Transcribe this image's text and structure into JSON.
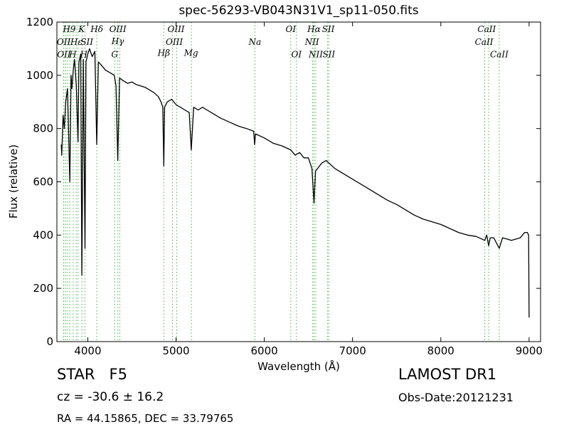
{
  "header": {
    "title": "spec-56293-VB043N31V1_sp11-050.fits"
  },
  "footer": {
    "object_class": "STAR   F5",
    "survey": "LAMOST DR1",
    "redshift": "cz = -30.6 ± 16.2",
    "obs_date": "Obs-Date:20121231",
    "coords": "RA = 44.15865, DEC = 33.79765"
  },
  "chart_data": {
    "type": "line",
    "title": "spec-56293-VB043N31V1_sp11-050.fits",
    "xlabel": "Wavelength (Å)",
    "ylabel": "Flux (relative)",
    "xlim": [
      3650,
      9130
    ],
    "ylim": [
      0,
      1200
    ],
    "xticks": [
      4000,
      5000,
      6000,
      7000,
      8000,
      9000
    ],
    "yticks": [
      0,
      200,
      400,
      600,
      800,
      1000,
      1200
    ],
    "grid": false,
    "series": [
      {
        "color": "#000000",
        "x": [
          3700,
          3705,
          3720,
          3735,
          3750,
          3770,
          3780,
          3797,
          3810,
          3820,
          3835,
          3850,
          3870,
          3889,
          3900,
          3920,
          3933,
          3950,
          3968,
          3980,
          4000,
          4020,
          4050,
          4080,
          4101,
          4120,
          4150,
          4200,
          4250,
          4300,
          4320,
          4340,
          4360,
          4400,
          4450,
          4500,
          4550,
          4600,
          4650,
          4700,
          4750,
          4800,
          4830,
          4850,
          4861,
          4870,
          4900,
          4950,
          5000,
          5050,
          5100,
          5150,
          5172,
          5200,
          5250,
          5300,
          5350,
          5400,
          5500,
          5600,
          5700,
          5800,
          5880,
          5890,
          5900,
          6000,
          6100,
          6200,
          6300,
          6350,
          6400,
          6450,
          6500,
          6540,
          6563,
          6580,
          6650,
          6700,
          6800,
          6900,
          7000,
          7100,
          7200,
          7300,
          7400,
          7500,
          7600,
          7700,
          7800,
          7900,
          8000,
          8100,
          8200,
          8300,
          8400,
          8498,
          8520,
          8542,
          8560,
          8600,
          8662,
          8700,
          8800,
          8900,
          8950,
          8980,
          8995,
          9000
        ],
        "y": [
          740,
          700,
          850,
          800,
          900,
          950,
          820,
          600,
          1000,
          950,
          1020,
          1060,
          960,
          750,
          1050,
          1080,
          250,
          1060,
          350,
          1050,
          1080,
          1100,
          1070,
          1090,
          740,
          1050,
          1040,
          1020,
          1010,
          1000,
          960,
          680,
          990,
          980,
          970,
          975,
          965,
          960,
          955,
          945,
          935,
          920,
          900,
          880,
          660,
          880,
          900,
          910,
          890,
          880,
          870,
          860,
          720,
          880,
          870,
          880,
          870,
          860,
          840,
          825,
          810,
          800,
          790,
          740,
          780,
          765,
          745,
          735,
          720,
          700,
          710,
          690,
          690,
          650,
          520,
          640,
          670,
          680,
          650,
          630,
          610,
          590,
          570,
          550,
          530,
          515,
          495,
          475,
          460,
          450,
          440,
          425,
          410,
          400,
          395,
          380,
          400,
          360,
          390,
          390,
          350,
          390,
          380,
          390,
          410,
          410,
          400,
          90
        ]
      }
    ],
    "lines": {
      "color": "#4caf50",
      "wavelengths": [
        3726,
        3729,
        3750,
        3771,
        3797,
        3835,
        3869,
        3889,
        3934,
        3968,
        4102,
        4304,
        4341,
        4363,
        4861,
        4959,
        5007,
        5175,
        5893,
        6300,
        6364,
        6548,
        6563,
        6583,
        6717,
        6731,
        8498,
        8542,
        8662
      ],
      "labels": [
        {
          "text": "H9",
          "x": 3790,
          "y": 1163
        },
        {
          "text": "K",
          "x": 3930,
          "y": 1163
        },
        {
          "text": "Hδ",
          "x": 4102,
          "y": 1163
        },
        {
          "text": "OIII",
          "x": 4340,
          "y": 1163
        },
        {
          "text": "OIII",
          "x": 5000,
          "y": 1163
        },
        {
          "text": "OI",
          "x": 6300,
          "y": 1163
        },
        {
          "text": "Hα",
          "x": 6563,
          "y": 1163
        },
        {
          "text": "SII",
          "x": 6725,
          "y": 1163
        },
        {
          "text": "CaII",
          "x": 8520,
          "y": 1163
        },
        {
          "text": "OII",
          "x": 3727,
          "y": 1115
        },
        {
          "text": "Hε",
          "x": 3870,
          "y": 1115
        },
        {
          "text": "SII",
          "x": 3990,
          "y": 1115
        },
        {
          "text": "Hγ",
          "x": 4340,
          "y": 1117
        },
        {
          "text": "OIII",
          "x": 4980,
          "y": 1115
        },
        {
          "text": "Na",
          "x": 5893,
          "y": 1115
        },
        {
          "text": "NII",
          "x": 6540,
          "y": 1115
        },
        {
          "text": "CaII",
          "x": 8490,
          "y": 1115
        },
        {
          "text": "OII",
          "x": 3730,
          "y": 1068
        },
        {
          "text": "H",
          "x": 3830,
          "y": 1068
        },
        {
          "text": "H",
          "x": 3955,
          "y": 1068
        },
        {
          "text": "G",
          "x": 4304,
          "y": 1068
        },
        {
          "text": "Hβ",
          "x": 4861,
          "y": 1073
        },
        {
          "text": "Mg",
          "x": 5170,
          "y": 1073
        },
        {
          "text": "OI",
          "x": 6364,
          "y": 1068
        },
        {
          "text": "NII",
          "x": 6583,
          "y": 1068
        },
        {
          "text": "SII",
          "x": 6731,
          "y": 1068
        },
        {
          "text": "CaII",
          "x": 8662,
          "y": 1068
        }
      ]
    }
  }
}
